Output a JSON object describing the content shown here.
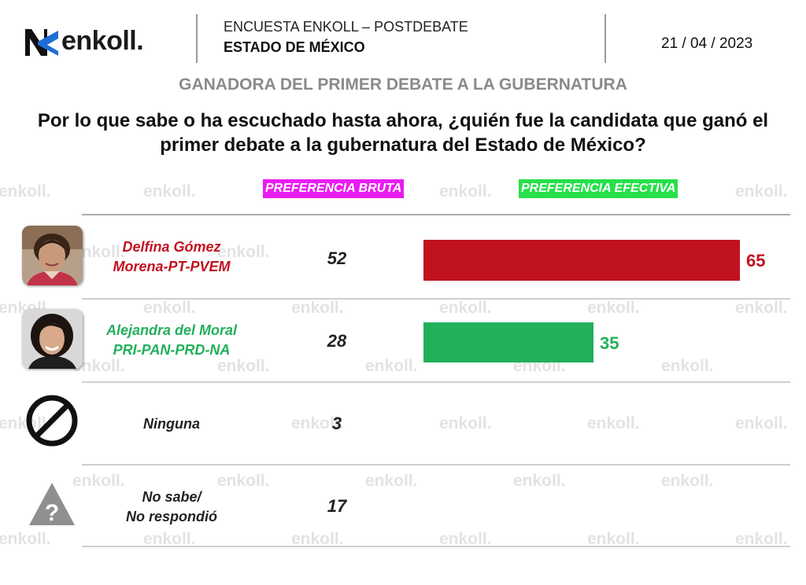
{
  "brand": {
    "logo_text": "enkoll.",
    "watermark_text": "enkoll."
  },
  "header": {
    "survey_title": "ENCUESTA ENKOLL – POSTDEBATE",
    "state": "ESTADO DE MÉXICO",
    "date": "21 / 04 / 2023"
  },
  "subtitle": "GANADORA DEL PRIMER DEBATE A LA GUBERNATURA",
  "question_line1": "Por lo que sabe o ha escuchado hasta ahora, ¿quién fue la candidata que ganó el",
  "question_line2": "primer debate a la gubernatura del Estado de México?",
  "colors": {
    "morena": "#c1121f",
    "pri": "#22b05a",
    "bruta_header": "#e81df0",
    "efectiva_header": "#27e04a",
    "subtitle_gray": "#8a8a8a"
  },
  "icons": {
    "logo": "enkoll-logo-icon",
    "delfina": "candidate-photo-icon",
    "alejandra": "candidate-photo-icon",
    "ninguna": "prohibited-icon",
    "no_sabe": "question-triangle-icon"
  },
  "chart_data": {
    "type": "bar",
    "columns": [
      "PREFERENCIA BRUTA",
      "PREFERENCIA EFECTIVA"
    ],
    "rows": [
      {
        "name_line1": "Delfina Gómez",
        "name_line2": "Morena-PT-PVEM",
        "bruta": 52,
        "efectiva": 65,
        "color": "#c1121f"
      },
      {
        "name_line1": "Alejandra del Moral",
        "name_line2": "PRI-PAN-PRD-NA",
        "bruta": 28,
        "efectiva": 35,
        "color": "#22b05a"
      },
      {
        "name_line1": "Ninguna",
        "name_line2": "",
        "bruta": 3
      },
      {
        "name_line1": "No sabe/",
        "name_line2": "No respondió",
        "bruta": 17
      }
    ],
    "efectiva_scale_max": 100
  }
}
